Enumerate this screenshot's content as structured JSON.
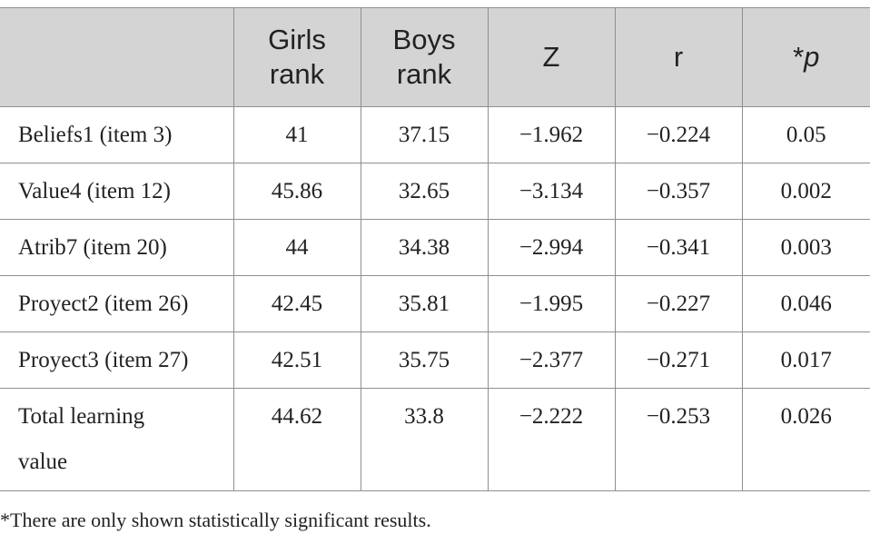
{
  "table": {
    "headers": [
      "",
      "Girls\nrank",
      "Boys\nrank",
      "Z",
      "r",
      "*"
    ],
    "p_head_italic": "p",
    "rows": [
      [
        "Beliefs1 (item 3)",
        "41",
        "37.15",
        "−1.962",
        "−0.224",
        "0.05"
      ],
      [
        "Value4 (item 12)",
        "45.86",
        "32.65",
        "−3.134",
        "−0.357",
        "0.002"
      ],
      [
        "Atrib7 (item 20)",
        "44",
        "34.38",
        "−2.994",
        "−0.341",
        "0.003"
      ],
      [
        "Proyect2 (item 26)",
        "42.45",
        "35.81",
        "−1.995",
        "−0.227",
        "0.046"
      ],
      [
        "Proyect3 (item 27)",
        "42.51",
        "35.75",
        "−2.377",
        "−0.271",
        "0.017"
      ],
      [
        "Total learning value",
        "44.62",
        "33.8",
        "−2.222",
        "−0.253",
        "0.026"
      ]
    ]
  },
  "footnote": "*There are only shown statistically significant results.",
  "colors": {
    "header_bg": "#d4d4d4",
    "grid": "#8f8f8f",
    "text": "#222222"
  }
}
